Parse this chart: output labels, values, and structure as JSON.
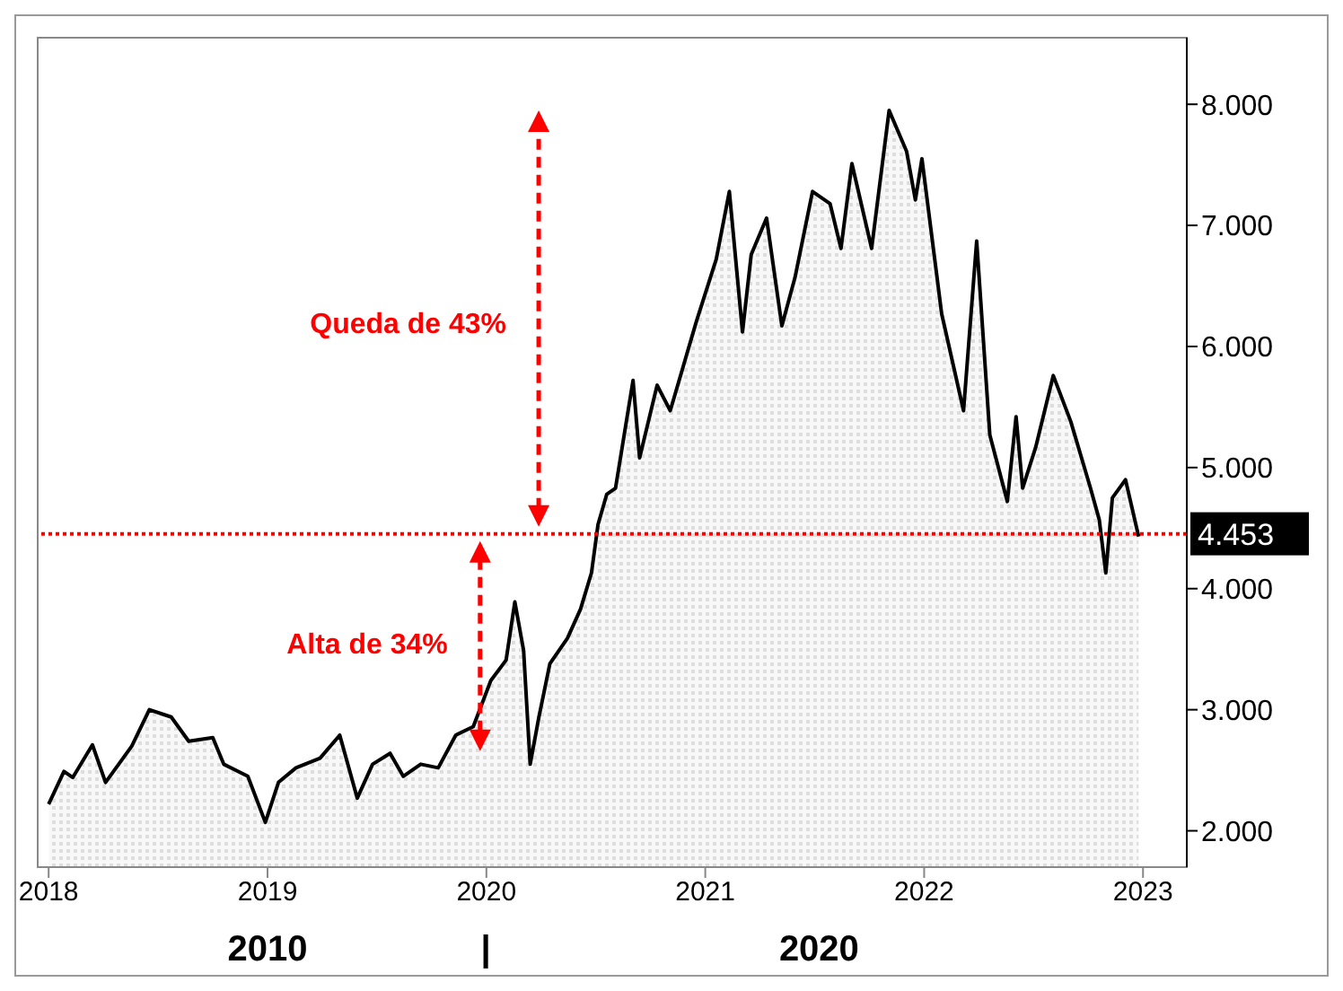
{
  "chart_data": {
    "type": "area",
    "x": [
      2018.0,
      2018.07,
      2018.11,
      2018.2,
      2018.26,
      2018.38,
      2018.46,
      2018.56,
      2018.64,
      2018.75,
      2018.8,
      2018.91,
      2018.99,
      2019.05,
      2019.13,
      2019.24,
      2019.33,
      2019.41,
      2019.48,
      2019.56,
      2019.62,
      2019.7,
      2019.78,
      2019.86,
      2019.94,
      2020.02,
      2020.09,
      2020.13,
      2020.17,
      2020.2,
      2020.24,
      2020.29,
      2020.37,
      2020.43,
      2020.48,
      2020.51,
      2020.55,
      2020.59,
      2020.67,
      2020.7,
      2020.78,
      2020.84,
      2020.96,
      2021.05,
      2021.11,
      2021.17,
      2021.21,
      2021.28,
      2021.35,
      2021.41,
      2021.49,
      2021.57,
      2021.62,
      2021.67,
      2021.76,
      2021.84,
      2021.92,
      2021.96,
      2021.99,
      2022.08,
      2022.18,
      2022.24,
      2022.3,
      2022.38,
      2022.42,
      2022.45,
      2022.51,
      2022.59,
      2022.67,
      2022.76,
      2022.8,
      2022.83,
      2022.86,
      2022.92,
      2022.98
    ],
    "series": [
      {
        "color": "#000000",
        "values": [
          2220,
          2490,
          2440,
          2710,
          2400,
          2700,
          3000,
          2940,
          2740,
          2770,
          2550,
          2450,
          2070,
          2400,
          2520,
          2600,
          2790,
          2270,
          2550,
          2640,
          2450,
          2550,
          2520,
          2790,
          2860,
          3240,
          3410,
          3890,
          3490,
          2550,
          2940,
          3380,
          3590,
          3830,
          4130,
          4530,
          4780,
          4830,
          5720,
          5080,
          5680,
          5470,
          6210,
          6720,
          7280,
          6120,
          6760,
          7060,
          6170,
          6570,
          7280,
          7180,
          6810,
          7510,
          6810,
          7950,
          7610,
          7210,
          7550,
          6270,
          5470,
          6870,
          5270,
          4720,
          5420,
          4830,
          5170,
          5760,
          5380,
          4830,
          4570,
          4130,
          4750,
          4900,
          4430
        ]
      }
    ],
    "xlim": [
      2017.95,
      2023.2
    ],
    "xticks": [
      2018,
      2019,
      2020,
      2021,
      2022,
      2023
    ],
    "ylim": [
      1700,
      8550
    ],
    "yticks": [
      {
        "value": 2000,
        "label": "2.000"
      },
      {
        "value": 3000,
        "label": "3.000"
      },
      {
        "value": 4000,
        "label": "4.000"
      },
      {
        "value": 5000,
        "label": "5.000"
      },
      {
        "value": 6000,
        "label": "6.000"
      },
      {
        "value": 7000,
        "label": "7.000"
      },
      {
        "value": 8000,
        "label": "8.000"
      }
    ],
    "ref_lines": [
      {
        "axis": "y",
        "value": 4453,
        "label": "4.453",
        "color": "#ff0000",
        "line_style": "dotted"
      }
    ],
    "annotations": [
      "Queda de 43%",
      "Alta de 34%",
      "2010",
      "|",
      "2020"
    ]
  }
}
